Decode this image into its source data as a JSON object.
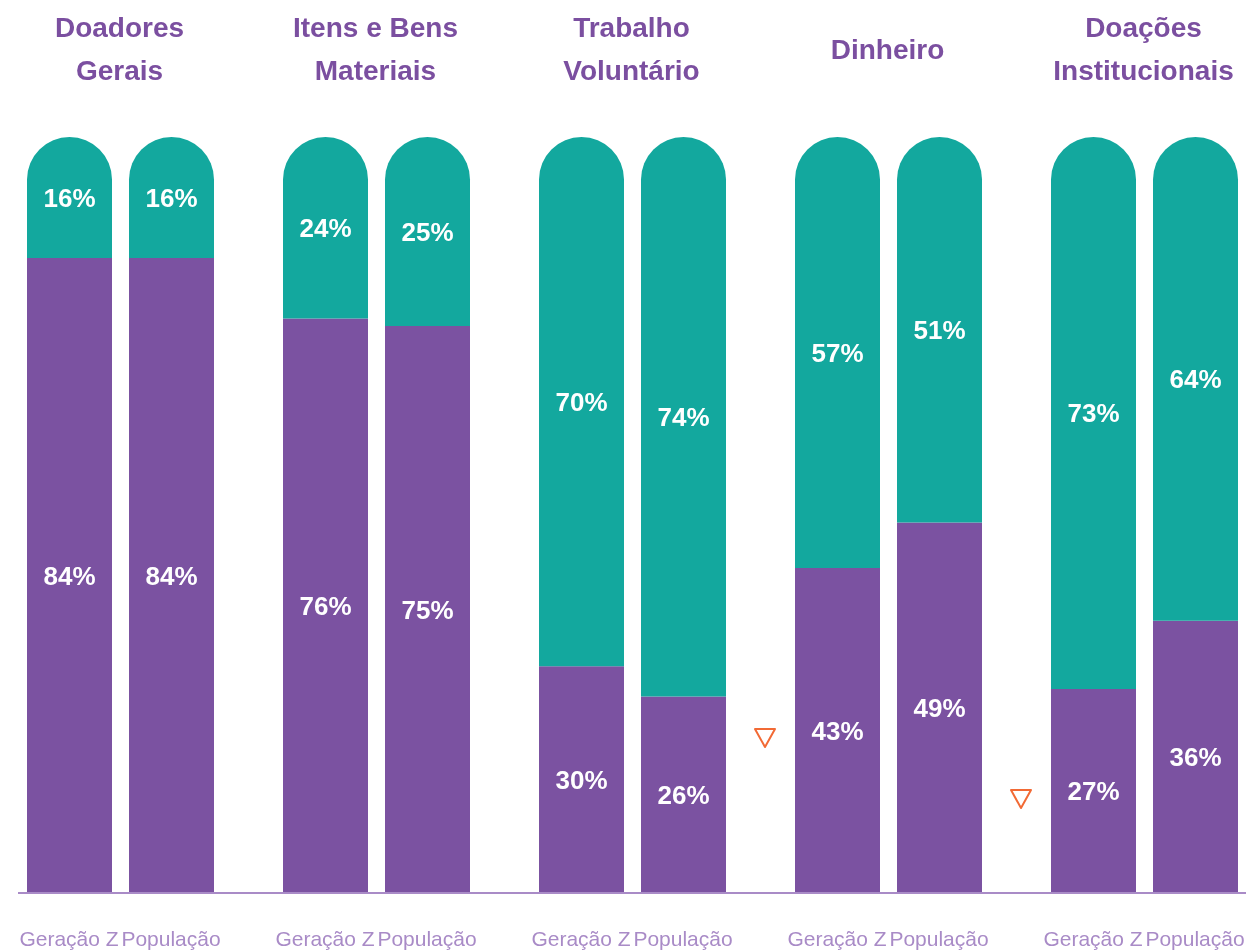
{
  "chart_data": [
    {
      "type": "bar",
      "title": "Doadores Gerais",
      "categories": [
        "Geração Z",
        "População"
      ],
      "stacked": true,
      "series": [
        {
          "color": "#7b52a1",
          "values": [
            84,
            84
          ],
          "value_labels": [
            "84%",
            "84%"
          ]
        },
        {
          "color": "#13a89e",
          "values": [
            16,
            16
          ],
          "value_labels": [
            "16%",
            "16%"
          ]
        }
      ]
    },
    {
      "type": "bar",
      "title": "Itens e Bens Materiais",
      "categories": [
        "Geração Z",
        "População"
      ],
      "stacked": true,
      "series": [
        {
          "color": "#7b52a1",
          "values": [
            76,
            75
          ],
          "value_labels": [
            "76%",
            "75%"
          ]
        },
        {
          "color": "#13a89e",
          "values": [
            24,
            25
          ],
          "value_labels": [
            "24%",
            "25%"
          ]
        }
      ]
    },
    {
      "type": "bar",
      "title": "Trabalho Voluntário",
      "categories": [
        "Geração Z",
        "População"
      ],
      "stacked": true,
      "series": [
        {
          "color": "#7b52a1",
          "values": [
            30,
            26
          ],
          "value_labels": [
            "30%",
            "26%"
          ]
        },
        {
          "color": "#13a89e",
          "values": [
            70,
            74
          ],
          "value_labels": [
            "70%",
            "74%"
          ]
        }
      ]
    },
    {
      "type": "bar",
      "title": "Dinheiro",
      "categories": [
        "Geração Z",
        "População"
      ],
      "stacked": true,
      "series": [
        {
          "color": "#7b52a1",
          "values": [
            43,
            49
          ],
          "value_labels": [
            "43%",
            "49%"
          ]
        },
        {
          "color": "#13a89e",
          "values": [
            57,
            51
          ],
          "value_labels": [
            "57%",
            "51%"
          ]
        }
      ]
    },
    {
      "type": "bar",
      "title": "Doações Institucionais",
      "categories": [
        "Geração Z",
        "População"
      ],
      "stacked": true,
      "series": [
        {
          "color": "#7b52a1",
          "values": [
            27,
            36
          ],
          "value_labels": [
            "27%",
            "36%"
          ]
        },
        {
          "color": "#13a89e",
          "values": [
            73,
            64
          ],
          "value_labels": [
            "73%",
            "64%"
          ]
        }
      ]
    }
  ]
}
